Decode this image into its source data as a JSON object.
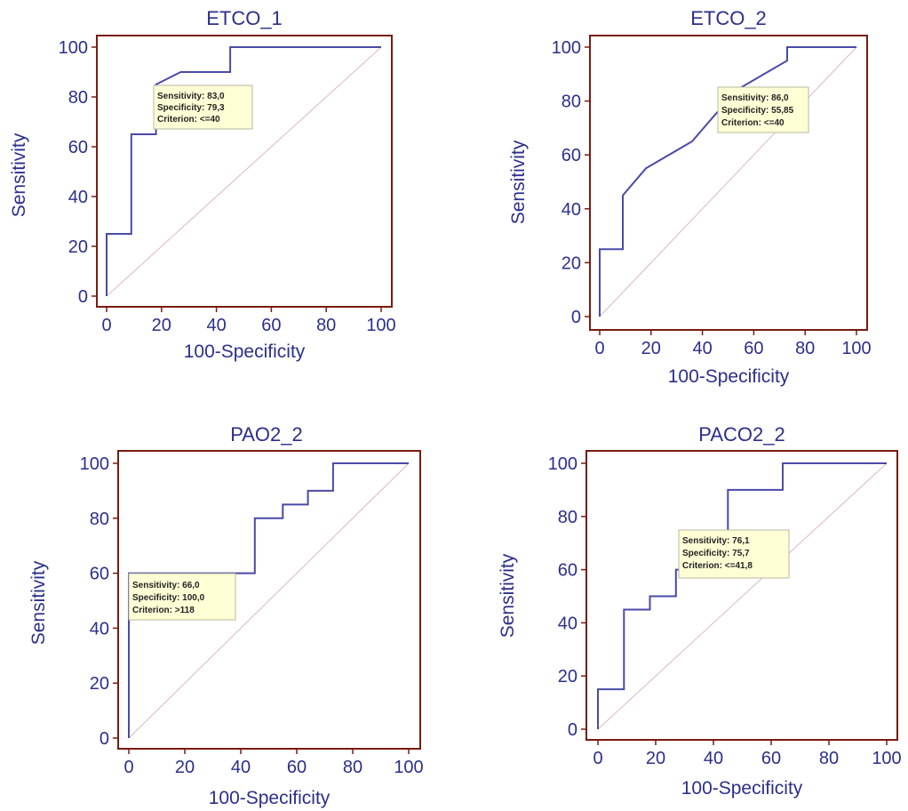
{
  "figure": {
    "colors": {
      "frame": "#7a1a10",
      "text": "#2b2f8a",
      "roc_line": "#4a4aa8",
      "diagonal": "#dcb8c0",
      "annotation_bg": "#ffffd6"
    }
  },
  "chart_data": [
    {
      "type": "line",
      "title": "ETCO_1",
      "xlabel": "100-Specificity",
      "ylabel": "Sensitivity",
      "xlim": [
        0,
        100
      ],
      "ylim": [
        0,
        100
      ],
      "xticks": [
        "0",
        "20",
        "40",
        "60",
        "80",
        "100"
      ],
      "yticks": [
        "0",
        "20",
        "40",
        "60",
        "80",
        "100"
      ],
      "grid": false,
      "series": [
        {
          "x": [
            0,
            0,
            9,
            9,
            18,
            18,
            27,
            45,
            45,
            100
          ],
          "y": [
            0,
            25,
            25,
            65,
            65,
            85,
            90,
            90,
            100,
            100
          ]
        }
      ],
      "diagonal": true,
      "annotation": {
        "lines": [
          "Sensitivity: 83,0",
          "Specificity: 79,3",
          "Criterion: <=40"
        ]
      }
    },
    {
      "type": "line",
      "title": "ETCO_2",
      "xlabel": "100-Specificity",
      "ylabel": "Sensitivity",
      "xlim": [
        0,
        100
      ],
      "ylim": [
        0,
        100
      ],
      "xticks": [
        "0",
        "20",
        "40",
        "60",
        "80",
        "100"
      ],
      "yticks": [
        "0",
        "20",
        "40",
        "60",
        "80",
        "100"
      ],
      "grid": false,
      "series": [
        {
          "x": [
            0,
            0,
            9,
            9,
            18,
            36,
            45,
            55,
            64,
            73,
            73,
            100
          ],
          "y": [
            0,
            25,
            25,
            45,
            55,
            65,
            75,
            85,
            90,
            95,
            100,
            100
          ]
        }
      ],
      "diagonal": true,
      "annotation": {
        "lines": [
          "Sensitivity: 86,0",
          "Specificity: 55,85",
          "Criterion: <=40"
        ]
      }
    },
    {
      "type": "line",
      "title": "PAO2_2",
      "xlabel": "100-Specificity",
      "ylabel": "Sensitivity",
      "xlim": [
        0,
        100
      ],
      "ylim": [
        0,
        100
      ],
      "xticks": [
        "0",
        "20",
        "40",
        "60",
        "80",
        "100"
      ],
      "yticks": [
        "0",
        "20",
        "40",
        "60",
        "80",
        "100"
      ],
      "grid": false,
      "series": [
        {
          "x": [
            0,
            0,
            45,
            45,
            55,
            55,
            64,
            64,
            73,
            73,
            100
          ],
          "y": [
            0,
            60,
            60,
            80,
            80,
            85,
            85,
            90,
            90,
            100,
            100
          ]
        }
      ],
      "diagonal": true,
      "annotation": {
        "lines": [
          "Sensitivity: 66,0",
          "Specificity: 100,0",
          "Criterion: >118"
        ]
      }
    },
    {
      "type": "line",
      "title": "PACO2_2",
      "xlabel": "100-Specificity",
      "ylabel": "Sensitivity",
      "xlim": [
        0,
        100
      ],
      "ylim": [
        0,
        100
      ],
      "xticks": [
        "0",
        "20",
        "40",
        "60",
        "80",
        "100"
      ],
      "yticks": [
        "0",
        "20",
        "40",
        "60",
        "80",
        "100"
      ],
      "grid": false,
      "series": [
        {
          "x": [
            0,
            0,
            9,
            9,
            18,
            18,
            27,
            27,
            45,
            45,
            64,
            64,
            100
          ],
          "y": [
            0,
            15,
            15,
            45,
            45,
            50,
            50,
            60,
            60,
            90,
            90,
            100,
            100
          ]
        }
      ],
      "diagonal": true,
      "annotation": {
        "lines": [
          "Sensitivity: 76,1",
          "Specificity: 75,7",
          "Criterion: <=41,8"
        ]
      }
    }
  ]
}
